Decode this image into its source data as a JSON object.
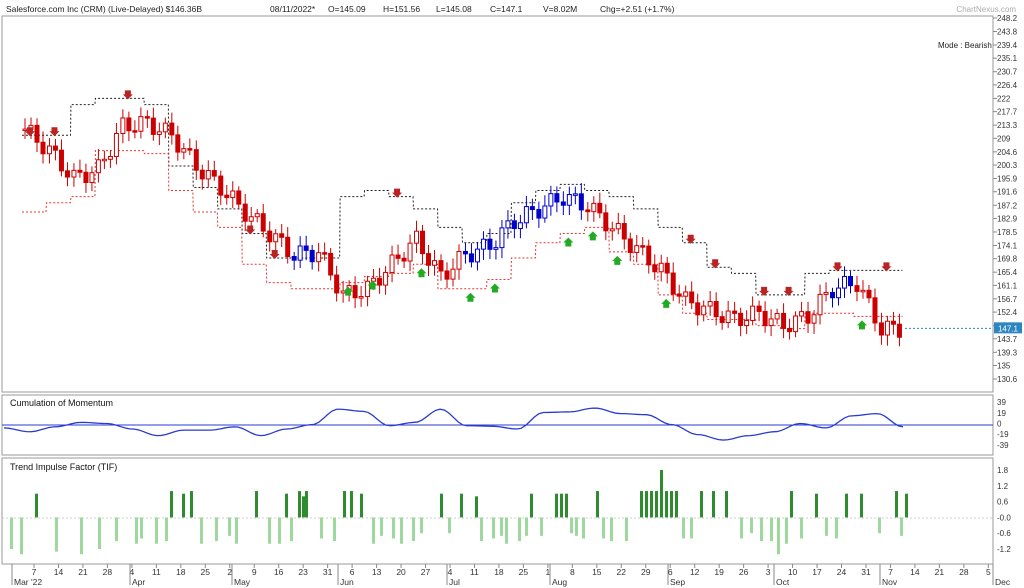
{
  "header": {
    "title": "Salesforce.com Inc (CRM) (Live-Delayed) $146.36B",
    "date": "08/11/2022*",
    "open": "O=145.09",
    "high": "H=151.56",
    "low": "L=145.08",
    "close": "C=147.1",
    "volume": "V=8.02M",
    "change": "Chg=+2.51 (+1.7%)",
    "watermark": "ChartNexus.com"
  },
  "main_panel": {
    "mode_label": "Mode : Bearish",
    "price_ticks": [
      "248.2",
      "243.8",
      "239.4",
      "235.1",
      "230.7",
      "226.4",
      "222",
      "217.7",
      "213.3",
      "209",
      "204.6",
      "200.3",
      "195.9",
      "191.6",
      "187.2",
      "182.9",
      "178.5",
      "174.1",
      "169.8",
      "165.4",
      "161.1",
      "156.7",
      "152.4",
      "148",
      "143.7",
      "139.3",
      "135",
      "130.6"
    ],
    "last_price_badge": "147.1",
    "colors": {
      "bear": "#cc0000",
      "bull": "#0000cc",
      "up_arrow": "#22aa22",
      "down_arrow": "#bb2222",
      "upper_band": "#222222",
      "lower_band": "#ee3333"
    }
  },
  "momentum_panel": {
    "title": "Cumulation of Momentum",
    "ticks": [
      "39",
      "19",
      "0",
      "-19",
      "-39"
    ],
    "line_color": "#2a3bd0"
  },
  "tif_panel": {
    "title": "Trend Impulse Factor (TIF)",
    "ticks": [
      "1.8",
      "1.2",
      "0.6",
      "-0.0",
      "-0.6",
      "-1.2"
    ],
    "colors": {
      "pos": "#2e8b2e",
      "neg": "#9fd89f"
    }
  },
  "x_axis": {
    "labels": [
      "7",
      "14",
      "21",
      "28",
      "4",
      "11",
      "18",
      "25",
      "2",
      "9",
      "16",
      "23",
      "31",
      "6",
      "13",
      "20",
      "27",
      "4",
      "11",
      "18",
      "25",
      "1",
      "8",
      "15",
      "22",
      "29",
      "6",
      "12",
      "19",
      "26",
      "3",
      "10",
      "17",
      "24",
      "31",
      "7",
      "14",
      "21",
      "28",
      "5"
    ],
    "months": [
      "Mar '22",
      "Apr",
      "May",
      "Jun",
      "Jul",
      "Aug",
      "Sep",
      "Oct",
      "Nov",
      "Dec"
    ]
  },
  "chart_data": {
    "type": "candlestick",
    "title": "Salesforce.com Inc (CRM) (Live-Delayed) $146.36B",
    "ylim": [
      128,
      249
    ],
    "last_close": 147.1,
    "weeks": [
      "Mar 7",
      "Mar 14",
      "Mar 21",
      "Mar 28",
      "Apr 4",
      "Apr 11",
      "Apr 18",
      "Apr 25",
      "May 2",
      "May 9",
      "May 16",
      "May 23",
      "May 31",
      "Jun 6",
      "Jun 13",
      "Jun 20",
      "Jun 27",
      "Jul 4",
      "Jul 11",
      "Jul 18",
      "Jul 25",
      "Aug 1",
      "Aug 8",
      "Aug 15",
      "Aug 22",
      "Aug 29",
      "Sep 6",
      "Sep 12",
      "Sep 19",
      "Sep 26",
      "Oct 3",
      "Oct 10",
      "Oct 17",
      "Oct 24",
      "Oct 31",
      "Nov 7"
    ],
    "close_path": [
      212,
      205,
      196,
      199,
      213,
      214,
      210,
      200,
      193,
      185,
      178,
      171,
      172,
      158,
      160,
      168,
      176,
      164,
      171,
      174,
      182,
      186,
      190,
      187,
      180,
      173,
      166,
      156,
      153,
      150,
      152,
      148,
      151,
      160,
      162,
      147
    ],
    "upper_band": [
      210,
      210,
      220,
      222,
      222,
      220,
      200,
      193,
      186,
      178,
      170,
      170,
      170,
      190,
      192,
      190,
      186,
      180,
      175,
      178,
      188,
      192,
      194,
      192,
      190,
      186,
      180,
      175,
      167,
      165,
      158,
      158,
      165,
      166,
      166,
      166
    ],
    "lower_band": [
      185,
      188,
      190,
      205,
      205,
      204,
      192,
      185,
      180,
      168,
      162,
      160,
      160,
      162,
      164,
      165,
      168,
      160,
      160,
      163,
      170,
      175,
      178,
      180,
      172,
      168,
      158,
      152,
      150,
      150,
      148,
      147,
      152,
      152,
      151,
      151
    ],
    "momentum_path": [
      -8,
      -15,
      -6,
      2,
      0,
      -10,
      -22,
      -12,
      -12,
      -6,
      -22,
      -10,
      -2,
      26,
      22,
      -4,
      2,
      26,
      -4,
      -5,
      -10,
      20,
      21,
      28,
      18,
      16,
      -2,
      -20,
      -30,
      -22,
      -15,
      0,
      -8,
      14,
      18,
      -6
    ],
    "tif_x": [
      10,
      20,
      35,
      55,
      80,
      98,
      115,
      135,
      140,
      155,
      165,
      170,
      182,
      190,
      200,
      215,
      228,
      235,
      255,
      268,
      278,
      285,
      290,
      298,
      302,
      305,
      320,
      333,
      343,
      350,
      360,
      372,
      380,
      392,
      400,
      412,
      420,
      440,
      448,
      460,
      475,
      480,
      492,
      500,
      505,
      518,
      525,
      530,
      540,
      555,
      560,
      565,
      570,
      575,
      582,
      596,
      602,
      610,
      625,
      640,
      645,
      650,
      655,
      660,
      665,
      670,
      675,
      682,
      690,
      700,
      712,
      725,
      740,
      750,
      760,
      770,
      777,
      785,
      790,
      800,
      815,
      825,
      835,
      845,
      860,
      878,
      895,
      900,
      905
    ],
    "tif_values": [
      -1.2,
      -1.4,
      0.9,
      -1.3,
      -1.4,
      -1.2,
      -0.9,
      -1.0,
      -0.8,
      -1.0,
      -0.9,
      1.0,
      0.9,
      1.0,
      -1.0,
      -0.9,
      -0.7,
      -1.0,
      1.0,
      -1.0,
      -1.0,
      0.9,
      -0.9,
      1.0,
      0.8,
      1.0,
      -0.8,
      -0.9,
      1.0,
      1.0,
      0.9,
      -1.0,
      -0.7,
      -0.8,
      -1.0,
      -0.9,
      -0.6,
      0.9,
      -0.6,
      0.9,
      0.8,
      -0.9,
      -0.8,
      -0.7,
      -1.0,
      -0.9,
      -0.7,
      0.9,
      -0.7,
      0.9,
      0.9,
      0.9,
      -0.6,
      -0.7,
      -0.8,
      1.0,
      -0.8,
      -0.9,
      -0.9,
      1.0,
      1.0,
      1.0,
      1.0,
      1.8,
      1.0,
      1.0,
      1.0,
      -0.8,
      -0.8,
      1.0,
      1.0,
      1.0,
      -0.8,
      -0.6,
      -0.9,
      -0.9,
      -1.4,
      -1.0,
      1.0,
      -0.8,
      0.9,
      -0.7,
      -0.8,
      0.9,
      0.9,
      -0.6,
      1.0,
      -0.7,
      0.9
    ]
  }
}
